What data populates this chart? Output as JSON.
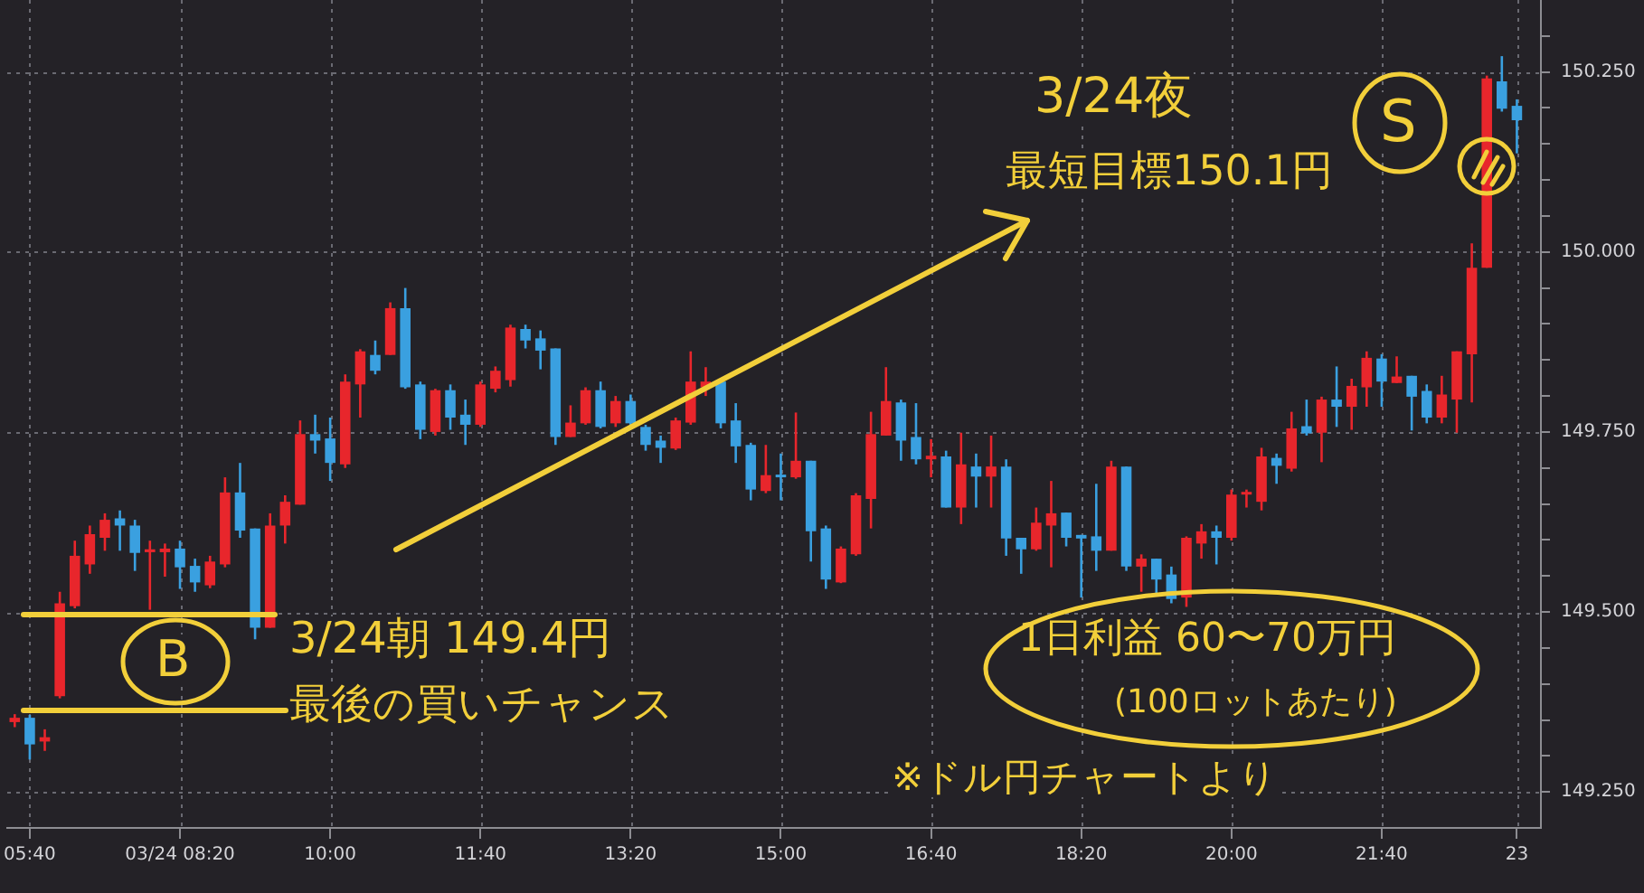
{
  "chart_data": {
    "type": "candlestick",
    "categories": [
      null,
      "05:40",
      null,
      null,
      null,
      null,
      null,
      null,
      null,
      null,
      null,
      "03/24 08:20",
      null,
      null,
      null,
      null,
      null,
      null,
      null,
      null,
      null,
      "10:00",
      null,
      null,
      null,
      null,
      null,
      null,
      null,
      null,
      null,
      "11:40",
      null,
      null,
      null,
      null,
      null,
      null,
      null,
      null,
      null,
      "13:20",
      null,
      null,
      null,
      null,
      null,
      null,
      null,
      null,
      null,
      "15:00",
      null,
      null,
      null,
      null,
      null,
      null,
      null,
      null,
      null,
      "16:40",
      null,
      null,
      null,
      null,
      null,
      null,
      null,
      null,
      null,
      "18:20",
      null,
      null,
      null,
      null,
      null,
      null,
      null,
      null,
      null,
      "20:00",
      null,
      null,
      null,
      null,
      null,
      null,
      null,
      null,
      null,
      "21:40",
      null,
      null,
      null,
      null,
      null,
      null,
      null,
      null,
      "23"
    ],
    "ohlc": [
      [
        149.347,
        149.358,
        149.34,
        149.353
      ],
      [
        149.353,
        149.357,
        149.295,
        149.316
      ],
      [
        149.32,
        149.337,
        149.307,
        149.326
      ],
      [
        149.383,
        149.528,
        149.38,
        149.512
      ],
      [
        149.508,
        149.599,
        149.505,
        149.578
      ],
      [
        149.566,
        149.62,
        149.553,
        149.608
      ],
      [
        149.603,
        149.637,
        149.585,
        149.628
      ],
      [
        149.63,
        149.641,
        149.585,
        149.62
      ],
      [
        149.62,
        149.628,
        149.557,
        149.582
      ],
      [
        149.583,
        149.599,
        149.503,
        149.587
      ],
      [
        149.583,
        149.595,
        149.549,
        149.588
      ],
      [
        149.588,
        149.599,
        149.532,
        149.562
      ],
      [
        149.564,
        149.574,
        149.528,
        149.541
      ],
      [
        149.537,
        149.578,
        149.533,
        149.57
      ],
      [
        149.566,
        149.687,
        149.562,
        149.666
      ],
      [
        149.666,
        149.707,
        149.603,
        149.613
      ],
      [
        149.616,
        149.616,
        149.462,
        149.478
      ],
      [
        149.478,
        149.637,
        149.478,
        149.62
      ],
      [
        149.62,
        149.662,
        149.595,
        149.653
      ],
      [
        149.649,
        149.766,
        149.649,
        149.747
      ],
      [
        149.747,
        149.774,
        149.72,
        149.738
      ],
      [
        149.741,
        149.77,
        149.682,
        149.707
      ],
      [
        149.705,
        149.83,
        149.7,
        149.82
      ],
      [
        149.816,
        149.865,
        149.77,
        149.862
      ],
      [
        149.857,
        149.877,
        149.83,
        149.835
      ],
      [
        149.857,
        149.93,
        149.857,
        149.922
      ],
      [
        149.922,
        149.95,
        149.81,
        149.812
      ],
      [
        149.816,
        149.82,
        149.74,
        149.753
      ],
      [
        149.75,
        149.81,
        149.745,
        149.808
      ],
      [
        149.808,
        149.816,
        149.753,
        149.77
      ],
      [
        149.774,
        149.795,
        149.732,
        149.76
      ],
      [
        149.76,
        149.82,
        149.757,
        149.816
      ],
      [
        149.81,
        149.841,
        149.805,
        149.835
      ],
      [
        149.822,
        149.899,
        149.813,
        149.895
      ],
      [
        149.893,
        149.899,
        149.866,
        149.877
      ],
      [
        149.88,
        149.891,
        149.837,
        149.863
      ],
      [
        149.866,
        149.866,
        149.732,
        149.743
      ],
      [
        149.743,
        149.787,
        149.743,
        149.763
      ],
      [
        149.762,
        149.812,
        149.76,
        149.808
      ],
      [
        149.808,
        149.82,
        149.755,
        149.757
      ],
      [
        149.762,
        149.8,
        149.757,
        149.793
      ],
      [
        149.793,
        149.802,
        149.755,
        149.762
      ],
      [
        149.757,
        149.76,
        149.724,
        149.732
      ],
      [
        149.738,
        149.745,
        149.707,
        149.728
      ],
      [
        149.727,
        149.77,
        149.725,
        149.766
      ],
      [
        149.763,
        149.862,
        149.76,
        149.82
      ],
      [
        149.812,
        149.84,
        149.8,
        149.82
      ],
      [
        149.82,
        149.824,
        149.755,
        149.762
      ],
      [
        149.766,
        149.79,
        149.707,
        149.73
      ],
      [
        149.732,
        149.735,
        149.655,
        149.67
      ],
      [
        149.668,
        149.732,
        149.665,
        149.69
      ],
      [
        149.69,
        149.72,
        149.655,
        149.687
      ],
      [
        149.687,
        149.777,
        149.685,
        149.71
      ],
      [
        149.71,
        149.71,
        149.57,
        149.612
      ],
      [
        149.616,
        149.62,
        149.532,
        149.545
      ],
      [
        149.541,
        149.591,
        149.54,
        149.588
      ],
      [
        149.58,
        149.665,
        149.578,
        149.662
      ],
      [
        149.657,
        149.778,
        149.616,
        149.747
      ],
      [
        149.745,
        149.84,
        149.745,
        149.793
      ],
      [
        149.791,
        149.795,
        149.71,
        149.738
      ],
      [
        149.743,
        149.79,
        149.705,
        149.712
      ],
      [
        149.712,
        149.74,
        149.687,
        149.717
      ],
      [
        149.716,
        149.724,
        149.645,
        149.645
      ],
      [
        149.645,
        149.749,
        149.622,
        149.705
      ],
      [
        149.702,
        149.72,
        149.645,
        149.688
      ],
      [
        149.688,
        149.745,
        149.645,
        149.702
      ],
      [
        149.702,
        149.712,
        149.578,
        149.602
      ],
      [
        149.603,
        149.603,
        149.553,
        149.587
      ],
      [
        149.587,
        149.645,
        149.585,
        149.624
      ],
      [
        149.62,
        149.682,
        149.562,
        149.637
      ],
      [
        149.638,
        149.638,
        149.591,
        149.603
      ],
      [
        149.607,
        149.607,
        149.52,
        149.602
      ],
      [
        149.605,
        149.678,
        149.557,
        149.585
      ],
      [
        149.585,
        149.71,
        149.585,
        149.702
      ],
      [
        149.702,
        149.702,
        149.557,
        149.563
      ],
      [
        149.563,
        149.58,
        149.528,
        149.574
      ],
      [
        149.574,
        149.574,
        149.524,
        149.545
      ],
      [
        149.552,
        149.563,
        149.512,
        149.518
      ],
      [
        149.52,
        149.605,
        149.507,
        149.603
      ],
      [
        149.595,
        149.622,
        149.574,
        149.612
      ],
      [
        149.612,
        149.62,
        149.566,
        149.603
      ],
      [
        149.603,
        149.67,
        149.599,
        149.663
      ],
      [
        149.663,
        149.67,
        149.645,
        149.665
      ],
      [
        149.653,
        149.728,
        149.641,
        149.716
      ],
      [
        149.714,
        149.72,
        149.678,
        149.703
      ],
      [
        149.699,
        149.778,
        149.695,
        149.755
      ],
      [
        149.758,
        149.795,
        149.745,
        149.748
      ],
      [
        149.749,
        149.799,
        149.708,
        149.795
      ],
      [
        149.795,
        149.841,
        149.757,
        149.785
      ],
      [
        149.785,
        149.824,
        149.753,
        149.814
      ],
      [
        149.812,
        149.862,
        149.785,
        149.853
      ],
      [
        149.852,
        149.858,
        149.785,
        149.82
      ],
      [
        149.818,
        149.855,
        149.818,
        149.827
      ],
      [
        149.828,
        149.828,
        149.752,
        149.799
      ],
      [
        149.807,
        149.816,
        149.762,
        149.77
      ],
      [
        149.77,
        149.828,
        149.762,
        149.802
      ],
      [
        149.795,
        149.862,
        149.749,
        149.862
      ],
      [
        149.858,
        150.012,
        149.791,
        149.978
      ],
      [
        149.978,
        150.245,
        149.978,
        150.241
      ],
      [
        150.237,
        150.272,
        150.195,
        150.199
      ],
      [
        150.203,
        150.212,
        150.137,
        150.183
      ]
    ],
    "colors": [
      "#e8262c",
      "#3aa0e0",
      "#e8262c",
      "#e8262c",
      "#e8262c",
      "#e8262c",
      "#e8262c",
      "#3aa0e0",
      "#3aa0e0",
      "#e8262c",
      "#e8262c",
      "#3aa0e0",
      "#3aa0e0",
      "#e8262c",
      "#e8262c",
      "#3aa0e0",
      "#3aa0e0",
      "#e8262c",
      "#e8262c",
      "#e8262c",
      "#3aa0e0",
      "#3aa0e0",
      "#e8262c",
      "#e8262c",
      "#3aa0e0",
      "#e8262c",
      "#3aa0e0",
      "#3aa0e0",
      "#e8262c",
      "#3aa0e0",
      "#3aa0e0",
      "#e8262c",
      "#e8262c",
      "#e8262c",
      "#3aa0e0",
      "#3aa0e0",
      "#3aa0e0",
      "#e8262c",
      "#e8262c",
      "#3aa0e0",
      "#e8262c",
      "#3aa0e0",
      "#3aa0e0",
      "#3aa0e0",
      "#e8262c",
      "#e8262c",
      "#e8262c",
      "#3aa0e0",
      "#3aa0e0",
      "#3aa0e0",
      "#e8262c",
      "#3aa0e0",
      "#e8262c",
      "#3aa0e0",
      "#3aa0e0",
      "#e8262c",
      "#e8262c",
      "#e8262c",
      "#e8262c",
      "#3aa0e0",
      "#3aa0e0",
      "#e8262c",
      "#3aa0e0",
      "#e8262c",
      "#3aa0e0",
      "#e8262c",
      "#3aa0e0",
      "#3aa0e0",
      "#e8262c",
      "#e8262c",
      "#3aa0e0",
      "#3aa0e0",
      "#3aa0e0",
      "#e8262c",
      "#3aa0e0",
      "#e8262c",
      "#3aa0e0",
      "#3aa0e0",
      "#e8262c",
      "#e8262c",
      "#3aa0e0",
      "#e8262c",
      "#e8262c",
      "#e8262c",
      "#3aa0e0",
      "#e8262c",
      "#3aa0e0",
      "#e8262c",
      "#3aa0e0",
      "#e8262c",
      "#e8262c",
      "#3aa0e0",
      "#e8262c",
      "#3aa0e0",
      "#3aa0e0",
      "#e8262c",
      "#e8262c",
      "#e8262c",
      "#e8262c",
      "#3aa0e0",
      "#3aa0e0"
    ],
    "ylim": [
      149.2,
      150.35
    ],
    "yticks": [
      {
        "value": 149.25,
        "label": "149.250"
      },
      {
        "value": 149.3,
        "label": null
      },
      {
        "value": 149.35,
        "label": null
      },
      {
        "value": 149.4,
        "label": null
      },
      {
        "value": 149.45,
        "label": null
      },
      {
        "value": 149.5,
        "label": "149.500"
      },
      {
        "value": 149.55,
        "label": null
      },
      {
        "value": 149.6,
        "label": null
      },
      {
        "value": 149.65,
        "label": null
      },
      {
        "value": 149.7,
        "label": null
      },
      {
        "value": 149.75,
        "label": "149.750"
      },
      {
        "value": 149.8,
        "label": null
      },
      {
        "value": 149.85,
        "label": null
      },
      {
        "value": 149.9,
        "label": null
      },
      {
        "value": 149.95,
        "label": null
      },
      {
        "value": 150,
        "label": "150.000"
      },
      {
        "value": 150.05,
        "label": null
      },
      {
        "value": 150.1,
        "label": null
      },
      {
        "value": 150.15,
        "label": null
      },
      {
        "value": 150.2,
        "label": null
      },
      {
        "value": 150.25,
        "label": "150.250"
      },
      {
        "value": 150.3,
        "label": null
      }
    ],
    "grid": true,
    "annotations": [
      "3/24夜",
      "最短目標150.1円",
      "S",
      "B",
      "3/24朝 149.4円",
      "最後の買いチャンス",
      "1日利益 60〜70万円",
      "(100ロットあたり)",
      "※ドル円チャートより"
    ]
  }
}
